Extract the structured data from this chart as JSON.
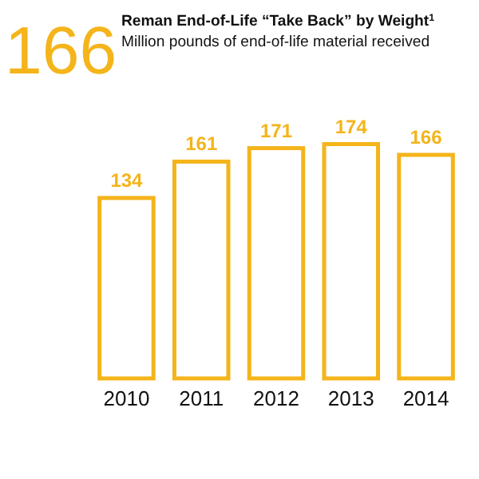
{
  "chart_data": {
    "type": "bar",
    "title": "Reman End-of-Life “Take Back” by Weight$^{1}$",
    "subtitle": "Million pounds of end-of-life material received",
    "annotations": [
      "166"
    ],
    "categories": [
      "2010",
      "2011",
      "2012",
      "2013",
      "2014"
    ],
    "values": [
      134,
      161,
      171,
      174,
      166
    ],
    "color": "#f4b41a",
    "data_labels": true
  }
}
